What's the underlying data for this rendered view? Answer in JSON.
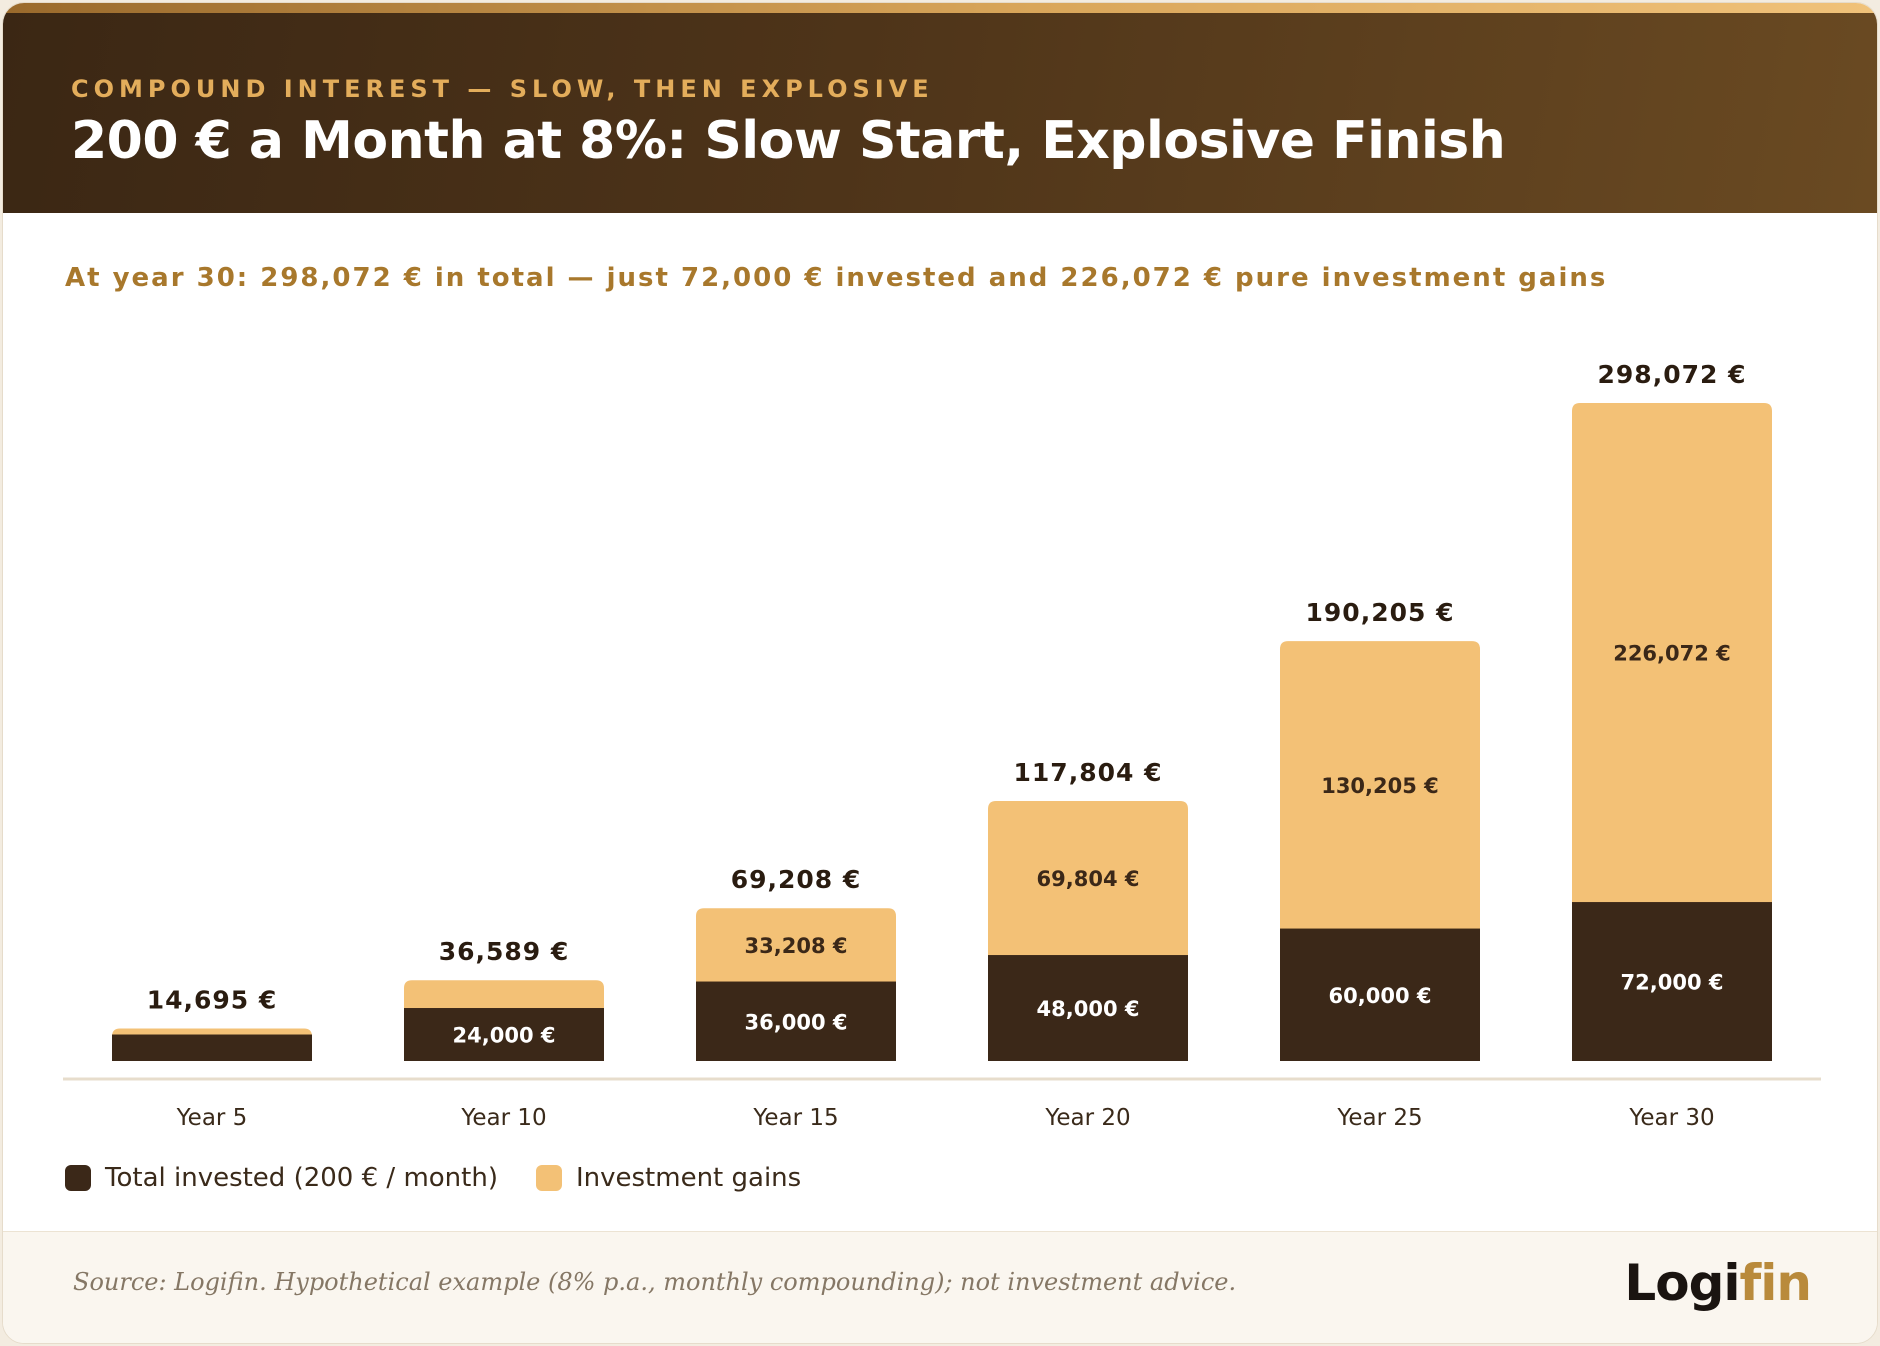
{
  "header": {
    "eyebrow": "COMPOUND INTEREST — SLOW, THEN EXPLOSIVE",
    "title": "200 € a Month at 8%: Slow Start, Explosive Finish"
  },
  "subtitle": "At year 30: 298,072 € in total — just 72,000 € invested and 226,072 € pure investment gains",
  "colors": {
    "invested": "#3b2818",
    "gains": "#f3c176",
    "total_label": "#2a1c10",
    "axis": "#e7ddcc"
  },
  "chart_data": {
    "type": "bar",
    "stacked": true,
    "categories": [
      "Year 5",
      "Year 10",
      "Year 15",
      "Year 20",
      "Year 25",
      "Year 30"
    ],
    "series": [
      {
        "name": "Total invested (200 € / month)",
        "values": [
          12000,
          24000,
          36000,
          48000,
          60000,
          72000
        ],
        "labels": [
          "",
          "24,000 €",
          "36,000 €",
          "48,000 €",
          "60,000 €",
          "72,000 €"
        ]
      },
      {
        "name": "Investment gains",
        "values": [
          2695,
          12589,
          33208,
          69804,
          130205,
          226072
        ],
        "labels": [
          "",
          "",
          "33,208 €",
          "69,804 €",
          "130,205 €",
          "226,072 €"
        ]
      }
    ],
    "totals": [
      14695,
      36589,
      69208,
      117804,
      190205,
      298072
    ],
    "total_labels": [
      "14,695 €",
      "36,589 €",
      "69,208 €",
      "117,804 €",
      "190,205 €",
      "298,072 €"
    ],
    "ylim": [
      0,
      298072
    ],
    "grid": false,
    "legend_position": "bottom-left"
  },
  "legend": {
    "invested_label": "Total invested (200 € / month)",
    "gains_label": "Investment gains"
  },
  "footer": {
    "source": "Source: Logifin. Hypothetical example (8% p.a., monthly compounding); not investment advice.",
    "logo_part1": "Logi",
    "logo_part2": "fin"
  }
}
